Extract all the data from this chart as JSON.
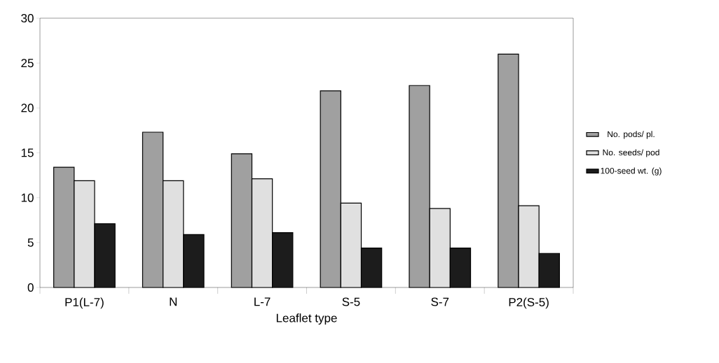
{
  "chart_data": {
    "type": "bar",
    "xlabel": "Leaflet type",
    "categories": [
      "P1(L-7)",
      "N",
      "L-7",
      "S-5",
      "S-7",
      "P2(S-5)"
    ],
    "series": [
      {
        "name": "No. pods/ pl.",
        "color": "#a0a0a0",
        "values": [
          13.4,
          17.3,
          14.9,
          21.9,
          22.5,
          26.0
        ]
      },
      {
        "name": "No. seeds/ pod",
        "color": "#e0e0e0",
        "values": [
          11.9,
          11.9,
          12.1,
          9.4,
          8.8,
          9.1
        ]
      },
      {
        "name": "100-seed wt. (g)",
        "color": "#1c1c1c",
        "values": [
          7.1,
          5.9,
          6.1,
          4.4,
          4.4,
          3.8
        ]
      }
    ],
    "ylim": [
      0,
      30
    ],
    "yticks": [
      0,
      5,
      10,
      15,
      20,
      25,
      30
    ],
    "grid": false,
    "legend": "right"
  }
}
